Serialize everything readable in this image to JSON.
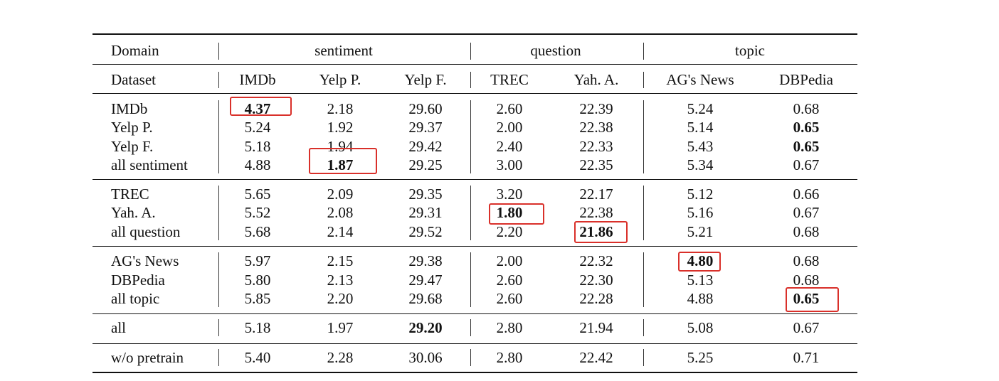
{
  "table": {
    "header_domain_label": "Domain",
    "header_dataset_label": "Dataset",
    "domains": [
      "sentiment",
      "question",
      "topic"
    ],
    "columns": [
      "IMDb",
      "Yelp P.",
      "Yelp F.",
      "TREC",
      "Yah. A.",
      "AG's News",
      "DBPedia"
    ],
    "row_groups": [
      [
        {
          "label": "IMDb",
          "values": [
            "4.37",
            "2.18",
            "29.60",
            "2.60",
            "22.39",
            "5.24",
            "0.68"
          ],
          "bold": [
            0
          ]
        },
        {
          "label": "Yelp P.",
          "values": [
            "5.24",
            "1.92",
            "29.37",
            "2.00",
            "22.38",
            "5.14",
            "0.65"
          ],
          "bold": [
            6
          ]
        },
        {
          "label": "Yelp F.",
          "values": [
            "5.18",
            "1.94",
            "29.42",
            "2.40",
            "22.33",
            "5.43",
            "0.65"
          ],
          "bold": [
            6
          ]
        },
        {
          "label": "all sentiment",
          "values": [
            "4.88",
            "1.87",
            "29.25",
            "3.00",
            "22.35",
            "5.34",
            "0.67"
          ],
          "bold": [
            1
          ]
        }
      ],
      [
        {
          "label": "TREC",
          "values": [
            "5.65",
            "2.09",
            "29.35",
            "3.20",
            "22.17",
            "5.12",
            "0.66"
          ],
          "bold": []
        },
        {
          "label": "Yah. A.",
          "values": [
            "5.52",
            "2.08",
            "29.31",
            "1.80",
            "22.38",
            "5.16",
            "0.67"
          ],
          "bold": [
            3
          ]
        },
        {
          "label": "all question",
          "values": [
            "5.68",
            "2.14",
            "29.52",
            "2.20",
            "21.86",
            "5.21",
            "0.68"
          ],
          "bold": [
            4
          ]
        }
      ],
      [
        {
          "label": "AG's News",
          "values": [
            "5.97",
            "2.15",
            "29.38",
            "2.00",
            "22.32",
            "4.80",
            "0.68"
          ],
          "bold": [
            5
          ]
        },
        {
          "label": "DBPedia",
          "values": [
            "5.80",
            "2.13",
            "29.47",
            "2.60",
            "22.30",
            "5.13",
            "0.68"
          ],
          "bold": []
        },
        {
          "label": "all topic",
          "values": [
            "5.85",
            "2.20",
            "29.68",
            "2.60",
            "22.28",
            "4.88",
            "0.65"
          ],
          "bold": [
            6
          ]
        }
      ],
      [
        {
          "label": "all",
          "values": [
            "5.18",
            "1.97",
            "29.20",
            "2.80",
            "21.94",
            "5.08",
            "0.67"
          ],
          "bold": [
            2
          ]
        }
      ],
      [
        {
          "label": "w/o pretrain",
          "values": [
            "5.40",
            "2.28",
            "30.06",
            "2.80",
            "22.42",
            "5.25",
            "0.71"
          ],
          "bold": []
        }
      ]
    ],
    "highlight_boxes": [
      {
        "group": 0,
        "row": 0,
        "col": 0
      },
      {
        "group": 0,
        "row": 3,
        "col": 1
      },
      {
        "group": 1,
        "row": 1,
        "col": 3
      },
      {
        "group": 1,
        "row": 2,
        "col": 4
      },
      {
        "group": 2,
        "row": 0,
        "col": 5
      },
      {
        "group": 2,
        "row": 2,
        "col": 6
      }
    ],
    "highlight_color": "#d9302a"
  }
}
